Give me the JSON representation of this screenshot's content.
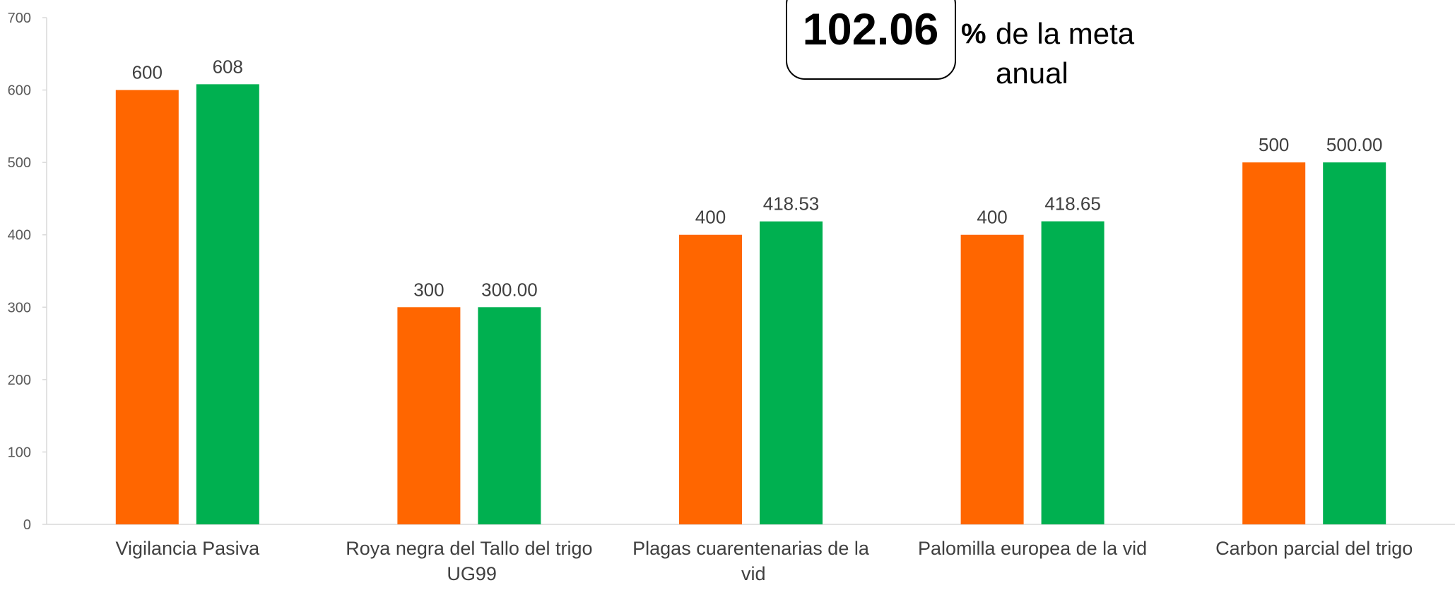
{
  "chart_data": {
    "type": "bar",
    "categories": [
      "Vigilancia Pasiva",
      "Roya negra del Tallo del trigo UG99",
      "Plagas cuarentenarias de la vid",
      "Palomilla europea de la vid",
      "Carbon parcial del trigo"
    ],
    "series": [
      {
        "color": "#ff6600",
        "values": [
          600,
          300,
          400,
          400,
          500
        ]
      },
      {
        "color": "#00b050",
        "values": [
          608,
          300,
          418.53,
          418.65,
          500
        ],
        "value_labels": [
          "608",
          "300.00",
          "418.53",
          "418.65",
          "500.00"
        ]
      }
    ],
    "ylim": [
      0,
      700
    ],
    "yticks": [
      0,
      100,
      200,
      300,
      400,
      500,
      600,
      700
    ],
    "annotation": {
      "value": 102.06,
      "unit": "%",
      "text": [
        "de la meta",
        "anual"
      ]
    }
  }
}
